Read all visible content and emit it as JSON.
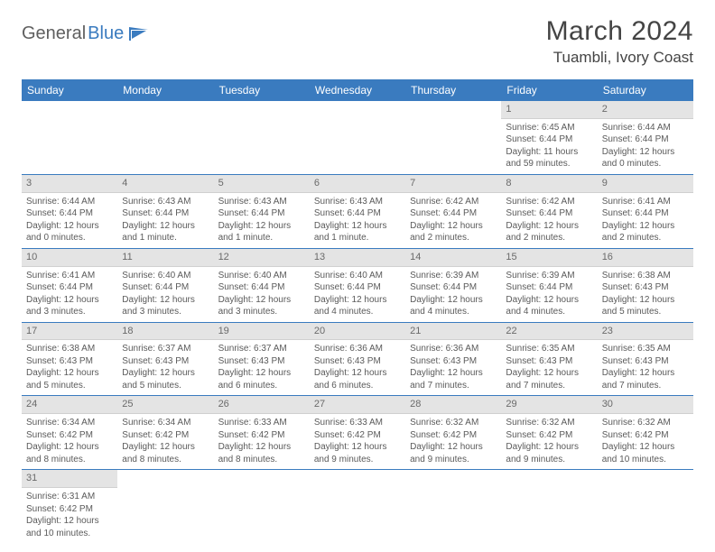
{
  "brand": {
    "general": "General",
    "blue": "Blue"
  },
  "title": "March 2024",
  "location": "Tuambli, Ivory Coast",
  "weekdays": [
    "Sunday",
    "Monday",
    "Tuesday",
    "Wednesday",
    "Thursday",
    "Friday",
    "Saturday"
  ],
  "colors": {
    "header_bg": "#3a7bbf",
    "header_text": "#ffffff",
    "daynum_bg": "#e4e4e4",
    "border": "#3a7bbf",
    "text": "#5a5a5a"
  },
  "grid": {
    "leading_blanks": 5,
    "days": [
      {
        "n": 1,
        "sunrise": "6:45 AM",
        "sunset": "6:44 PM",
        "daylight": "11 hours and 59 minutes."
      },
      {
        "n": 2,
        "sunrise": "6:44 AM",
        "sunset": "6:44 PM",
        "daylight": "12 hours and 0 minutes."
      },
      {
        "n": 3,
        "sunrise": "6:44 AM",
        "sunset": "6:44 PM",
        "daylight": "12 hours and 0 minutes."
      },
      {
        "n": 4,
        "sunrise": "6:43 AM",
        "sunset": "6:44 PM",
        "daylight": "12 hours and 1 minute."
      },
      {
        "n": 5,
        "sunrise": "6:43 AM",
        "sunset": "6:44 PM",
        "daylight": "12 hours and 1 minute."
      },
      {
        "n": 6,
        "sunrise": "6:43 AM",
        "sunset": "6:44 PM",
        "daylight": "12 hours and 1 minute."
      },
      {
        "n": 7,
        "sunrise": "6:42 AM",
        "sunset": "6:44 PM",
        "daylight": "12 hours and 2 minutes."
      },
      {
        "n": 8,
        "sunrise": "6:42 AM",
        "sunset": "6:44 PM",
        "daylight": "12 hours and 2 minutes."
      },
      {
        "n": 9,
        "sunrise": "6:41 AM",
        "sunset": "6:44 PM",
        "daylight": "12 hours and 2 minutes."
      },
      {
        "n": 10,
        "sunrise": "6:41 AM",
        "sunset": "6:44 PM",
        "daylight": "12 hours and 3 minutes."
      },
      {
        "n": 11,
        "sunrise": "6:40 AM",
        "sunset": "6:44 PM",
        "daylight": "12 hours and 3 minutes."
      },
      {
        "n": 12,
        "sunrise": "6:40 AM",
        "sunset": "6:44 PM",
        "daylight": "12 hours and 3 minutes."
      },
      {
        "n": 13,
        "sunrise": "6:40 AM",
        "sunset": "6:44 PM",
        "daylight": "12 hours and 4 minutes."
      },
      {
        "n": 14,
        "sunrise": "6:39 AM",
        "sunset": "6:44 PM",
        "daylight": "12 hours and 4 minutes."
      },
      {
        "n": 15,
        "sunrise": "6:39 AM",
        "sunset": "6:44 PM",
        "daylight": "12 hours and 4 minutes."
      },
      {
        "n": 16,
        "sunrise": "6:38 AM",
        "sunset": "6:43 PM",
        "daylight": "12 hours and 5 minutes."
      },
      {
        "n": 17,
        "sunrise": "6:38 AM",
        "sunset": "6:43 PM",
        "daylight": "12 hours and 5 minutes."
      },
      {
        "n": 18,
        "sunrise": "6:37 AM",
        "sunset": "6:43 PM",
        "daylight": "12 hours and 5 minutes."
      },
      {
        "n": 19,
        "sunrise": "6:37 AM",
        "sunset": "6:43 PM",
        "daylight": "12 hours and 6 minutes."
      },
      {
        "n": 20,
        "sunrise": "6:36 AM",
        "sunset": "6:43 PM",
        "daylight": "12 hours and 6 minutes."
      },
      {
        "n": 21,
        "sunrise": "6:36 AM",
        "sunset": "6:43 PM",
        "daylight": "12 hours and 7 minutes."
      },
      {
        "n": 22,
        "sunrise": "6:35 AM",
        "sunset": "6:43 PM",
        "daylight": "12 hours and 7 minutes."
      },
      {
        "n": 23,
        "sunrise": "6:35 AM",
        "sunset": "6:43 PM",
        "daylight": "12 hours and 7 minutes."
      },
      {
        "n": 24,
        "sunrise": "6:34 AM",
        "sunset": "6:42 PM",
        "daylight": "12 hours and 8 minutes."
      },
      {
        "n": 25,
        "sunrise": "6:34 AM",
        "sunset": "6:42 PM",
        "daylight": "12 hours and 8 minutes."
      },
      {
        "n": 26,
        "sunrise": "6:33 AM",
        "sunset": "6:42 PM",
        "daylight": "12 hours and 8 minutes."
      },
      {
        "n": 27,
        "sunrise": "6:33 AM",
        "sunset": "6:42 PM",
        "daylight": "12 hours and 9 minutes."
      },
      {
        "n": 28,
        "sunrise": "6:32 AM",
        "sunset": "6:42 PM",
        "daylight": "12 hours and 9 minutes."
      },
      {
        "n": 29,
        "sunrise": "6:32 AM",
        "sunset": "6:42 PM",
        "daylight": "12 hours and 9 minutes."
      },
      {
        "n": 30,
        "sunrise": "6:32 AM",
        "sunset": "6:42 PM",
        "daylight": "12 hours and 10 minutes."
      },
      {
        "n": 31,
        "sunrise": "6:31 AM",
        "sunset": "6:42 PM",
        "daylight": "12 hours and 10 minutes."
      }
    ]
  },
  "labels": {
    "sunrise": "Sunrise:",
    "sunset": "Sunset:",
    "daylight": "Daylight:"
  }
}
